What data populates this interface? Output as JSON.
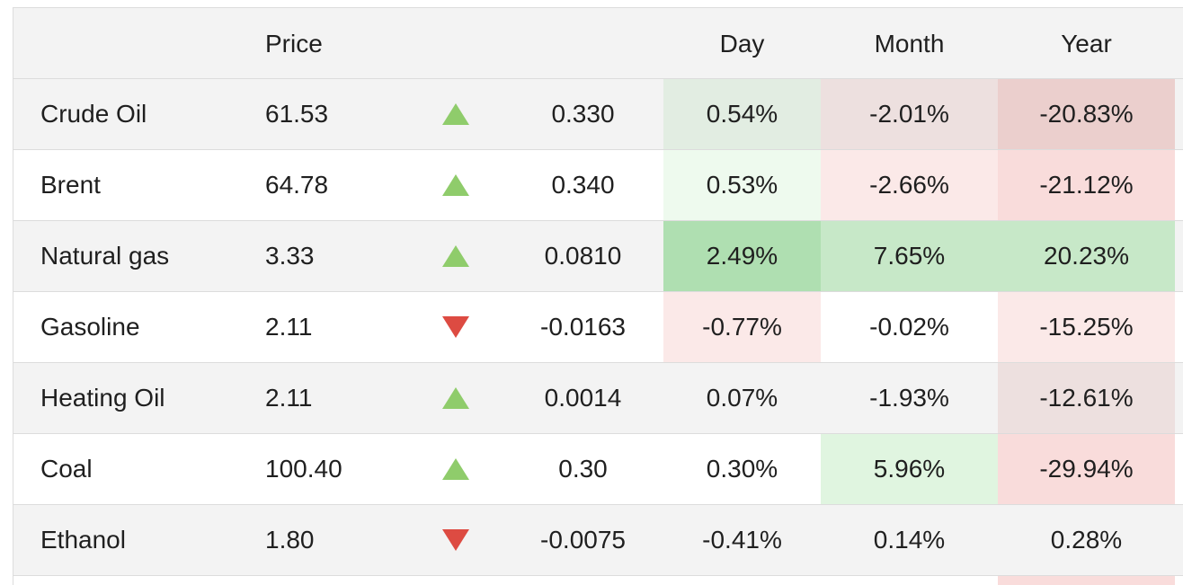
{
  "table": {
    "headers": {
      "name": "",
      "price": "Price",
      "arrow": "",
      "change": "",
      "day": "Day",
      "month": "Month",
      "year": "Year"
    },
    "rows": [
      {
        "name": "Crude Oil",
        "price": "61.53",
        "direction": "up",
        "change": "0.330",
        "day": "0.54%",
        "month": "-2.01%",
        "year": "-20.83%",
        "colors": {
          "day": "#e2ede2",
          "month": "#ede0df",
          "year": "#ebcfcd"
        }
      },
      {
        "name": "Brent",
        "price": "64.78",
        "direction": "up",
        "change": "0.340",
        "day": "0.53%",
        "month": "-2.66%",
        "year": "-21.12%",
        "colors": {
          "day": "#eefaee",
          "month": "#fbe9e8",
          "year": "#f9dcdb"
        }
      },
      {
        "name": "Natural gas",
        "price": "3.33",
        "direction": "up",
        "change": "0.0810",
        "day": "2.49%",
        "month": "7.65%",
        "year": "20.23%",
        "colors": {
          "day": "#afdfb1",
          "month": "#c7e8c8",
          "year": "#c7e8c8"
        }
      },
      {
        "name": "Gasoline",
        "price": "2.11",
        "direction": "down",
        "change": "-0.0163",
        "day": "-0.77%",
        "month": "-0.02%",
        "year": "-15.25%",
        "colors": {
          "day": "#fbe9e8",
          "month": "#ffffff",
          "year": "#fbe9e8"
        }
      },
      {
        "name": "Heating Oil",
        "price": "2.11",
        "direction": "up",
        "change": "0.0014",
        "day": "0.07%",
        "month": "-1.93%",
        "year": "-12.61%",
        "colors": {
          "day": "#f3f3f3",
          "month": "#f3f3f3",
          "year": "#ede0df"
        }
      },
      {
        "name": "Coal",
        "price": "100.40",
        "direction": "up",
        "change": "0.30",
        "day": "0.30%",
        "month": "5.96%",
        "year": "-29.94%",
        "colors": {
          "day": "#ffffff",
          "month": "#e0f5e0",
          "year": "#f9dcdb"
        }
      },
      {
        "name": "Ethanol",
        "price": "1.80",
        "direction": "down",
        "change": "-0.0075",
        "day": "-0.41%",
        "month": "0.14%",
        "year": "0.28%",
        "colors": {
          "day": "#f3f3f3",
          "month": "#f3f3f3",
          "year": "#f3f3f3"
        }
      }
    ],
    "arrow_colors": {
      "up": "#8fcc6b",
      "down": "#dd4b42"
    },
    "partial_row_colors": {
      "year": "#f9dcdb"
    }
  }
}
